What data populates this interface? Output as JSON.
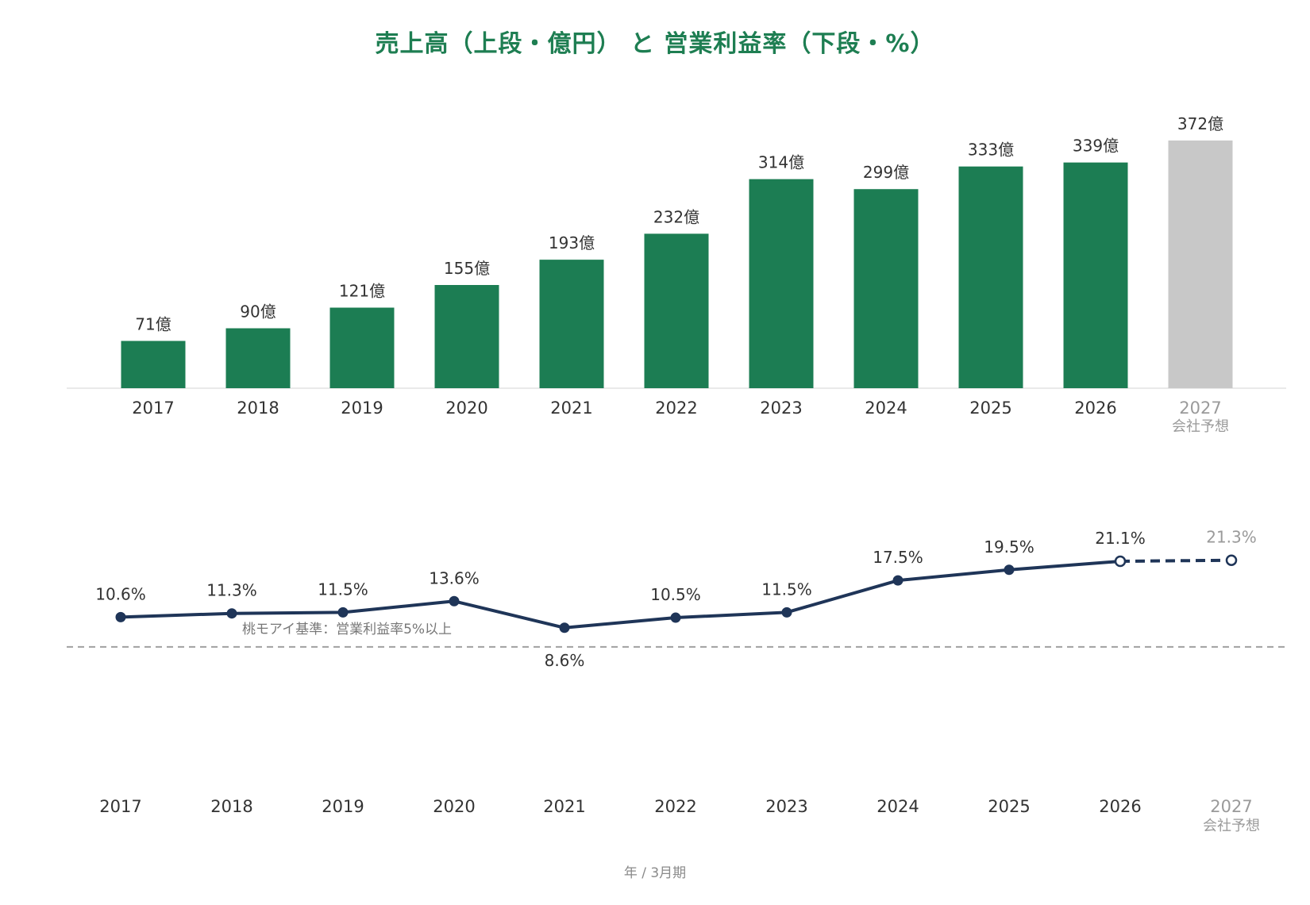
{
  "title": "売上高（上段・億円） と 営業利益率（下段・%）",
  "footer": "年 / 3月期",
  "colors": {
    "title": "#1e7e52",
    "bar": "#1c7d53",
    "bar_forecast": "#c8c8c8",
    "line": "#1f3558",
    "reference_line": "#a0a0a0",
    "forecast_text": "#9a9a9a"
  },
  "chart_data": [
    {
      "type": "bar",
      "categories": [
        "2017",
        "2018",
        "2019",
        "2020",
        "2021",
        "2022",
        "2023",
        "2024",
        "2025",
        "2026",
        "2027"
      ],
      "forecast_sublabel": "会社予想",
      "values": [
        71,
        90,
        121,
        155,
        193,
        232,
        314,
        299,
        333,
        339,
        372
      ],
      "value_labels": [
        "71億",
        "90億",
        "121億",
        "155億",
        "193億",
        "232億",
        "314億",
        "299億",
        "333億",
        "339億",
        "372億"
      ],
      "forecast_flags": [
        false,
        false,
        false,
        false,
        false,
        false,
        false,
        false,
        false,
        false,
        true
      ],
      "ylim": [
        0,
        372
      ],
      "grid": false
    },
    {
      "type": "line",
      "categories": [
        "2017",
        "2018",
        "2019",
        "2020",
        "2021",
        "2022",
        "2023",
        "2024",
        "2025",
        "2026",
        "2027"
      ],
      "forecast_sublabel": "会社予想",
      "values": [
        10.6,
        11.3,
        11.5,
        13.6,
        8.6,
        10.5,
        11.5,
        17.5,
        19.5,
        21.1,
        21.3
      ],
      "value_labels": [
        "10.6%",
        "11.3%",
        "11.5%",
        "13.6%",
        "8.6%",
        "10.5%",
        "11.5%",
        "17.5%",
        "19.5%",
        "21.1%",
        "21.3%"
      ],
      "forecast_flags": [
        false,
        false,
        false,
        false,
        false,
        false,
        false,
        false,
        false,
        false,
        true
      ],
      "reference_line": {
        "value": 5,
        "label": "桃モアイ基準：営業利益率5%以上"
      },
      "grid": false
    }
  ]
}
